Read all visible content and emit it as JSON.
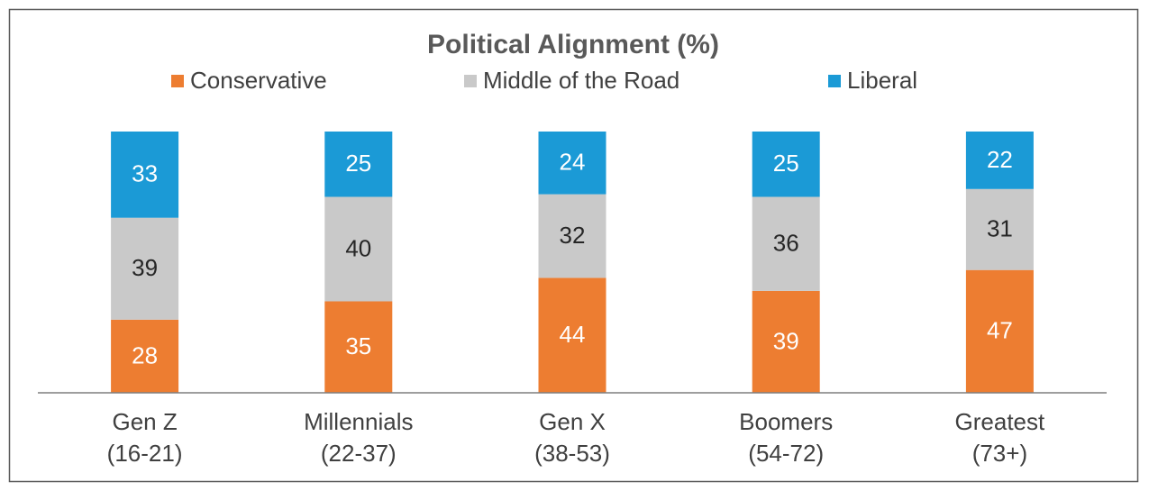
{
  "chart_data": {
    "type": "stacked_bar",
    "title": "Political Alignment (%)",
    "categories": [
      [
        "Gen Z",
        "(16-21)"
      ],
      [
        "Millennials",
        "(22-37)"
      ],
      [
        "Gen X",
        "(38-53)"
      ],
      [
        "Boomers",
        "(54-72)"
      ],
      [
        "Greatest",
        "(73+)"
      ]
    ],
    "series": [
      {
        "name": "Conservative",
        "color": "#ED7D31",
        "values": [
          28,
          35,
          44,
          39,
          47
        ]
      },
      {
        "name": "Middle of the Road",
        "color": "#C9C9C9",
        "values": [
          39,
          40,
          32,
          36,
          31
        ]
      },
      {
        "name": "Liberal",
        "color": "#1B9AD6",
        "values": [
          33,
          25,
          24,
          25,
          22
        ]
      }
    ]
  }
}
